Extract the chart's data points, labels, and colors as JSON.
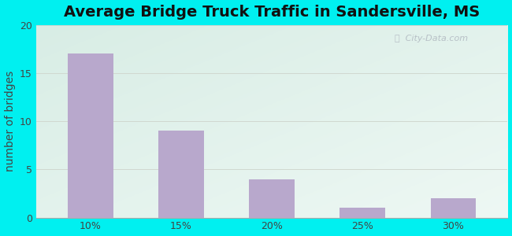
{
  "categories": [
    "10%",
    "15%",
    "20%",
    "25%",
    "30%"
  ],
  "values": [
    17,
    9,
    4,
    1,
    2
  ],
  "bar_color": "#b8a8cc",
  "title": "Average Bridge Truck Traffic in Sandersville, MS",
  "ylabel": "number of bridges",
  "ylim": [
    0,
    20
  ],
  "yticks": [
    0,
    5,
    10,
    15,
    20
  ],
  "bg_outer": "#00f0f0",
  "grid_color": "#d0d8d0",
  "title_fontsize": 14,
  "ylabel_fontsize": 10,
  "tick_fontsize": 9,
  "watermark": "City-Data.com",
  "plot_bg_topleft": "#d8ede5",
  "plot_bg_bottomright": "#eef8f2"
}
